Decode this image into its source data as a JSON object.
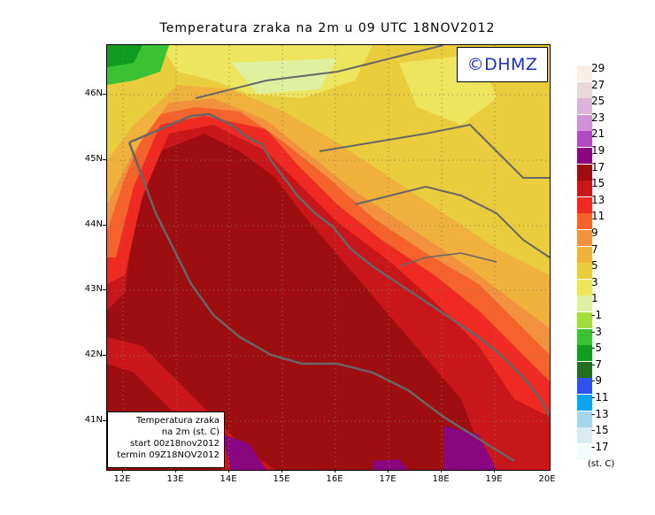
{
  "title": "Temperatura zraka na 2m u 09 UTC 18NOV2012",
  "watermark": "©DHMZ",
  "info_box": {
    "line1": "Temperatura zraka",
    "line2": "na 2m (st. C)",
    "line3": "start 00z18nov2012",
    "line4": "termin 09Z18NOV2012"
  },
  "lat_labels": [
    "46N",
    "45N",
    "44N",
    "43N",
    "42N",
    "41N"
  ],
  "lon_labels": [
    "12E",
    "13E",
    "14E",
    "15E",
    "16E",
    "17E",
    "18E",
    "19E",
    "20E"
  ],
  "legend": {
    "labels": [
      "29",
      "27",
      "25",
      "23",
      "21",
      "19",
      "17",
      "15",
      "13",
      "11",
      "9",
      "7",
      "5",
      "3",
      "1",
      "-1",
      "-3",
      "-5",
      "-7",
      "-9",
      "-11",
      "-13",
      "-15",
      "-17"
    ],
    "colors": [
      "#fbeee6",
      "#ead7d9",
      "#dcb3da",
      "#d291d6",
      "#b14bc4",
      "#8a0580",
      "#9e0d10",
      "#c8161a",
      "#ef2a22",
      "#f5622c",
      "#f3923e",
      "#f0b13d",
      "#eacd3d",
      "#eee55e",
      "#dff0a1",
      "#a3dd3c",
      "#3bc233",
      "#109c1e",
      "#216e20",
      "#2d52f1",
      "#0ea3ee",
      "#a5d5ea",
      "#d9ecf2",
      "#f4fbfc"
    ],
    "units": "(st. C)"
  }
}
